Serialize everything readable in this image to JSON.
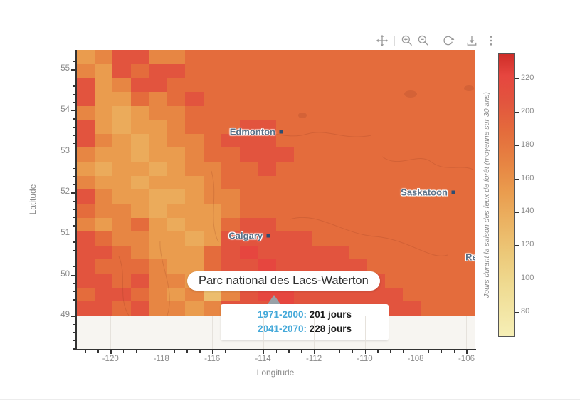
{
  "modebar": {
    "icons": [
      "pan-icon",
      "zoom-in-icon",
      "zoom-out-icon",
      "reset-axes-icon",
      "download-icon",
      "more-options-icon"
    ]
  },
  "chart_data": {
    "type": "heatmap",
    "title": "",
    "xlabel": "Longitude",
    "ylabel": "Latitude",
    "xlim": [
      -121.35,
      -105.65
    ],
    "ylim": [
      48.19,
      55.47
    ],
    "xticks": [
      -120,
      -118,
      -116,
      -114,
      -112,
      -110,
      -108,
      -106
    ],
    "yticks": [
      49,
      50,
      51,
      52,
      53,
      54,
      55
    ],
    "grid": "minor-ticks-on",
    "colorbar": {
      "title": "Jours durant la saison des feux de forêt (moyenne sur 30 ans)",
      "ticks": [
        80,
        100,
        120,
        140,
        160,
        180,
        200,
        220
      ],
      "domain": [
        65,
        235
      ],
      "colorscale": [
        [
          65,
          "#f6efb6"
        ],
        [
          95,
          "#efdb92"
        ],
        [
          115,
          "#ecc878"
        ],
        [
          135,
          "#ebb161"
        ],
        [
          152,
          "#ea9c4e"
        ],
        [
          168,
          "#e78643"
        ],
        [
          188,
          "#e46c3c"
        ],
        [
          207,
          "#e2543e"
        ],
        [
          222,
          "#e6463f"
        ],
        [
          235,
          "#cf2d28"
        ]
      ]
    },
    "values_unit": "jours durant la saison des feux de forêt",
    "matrix": [
      [
        152,
        168,
        207,
        207,
        168,
        168,
        188,
        188,
        188,
        188,
        188,
        188,
        188,
        188,
        188,
        188,
        188,
        188,
        188,
        188,
        188,
        188
      ],
      [
        168,
        152,
        207,
        188,
        207,
        207,
        188,
        188,
        188,
        188,
        188,
        188,
        188,
        188,
        188,
        188,
        188,
        188,
        188,
        188,
        188,
        188
      ],
      [
        207,
        152,
        168,
        207,
        207,
        188,
        188,
        188,
        188,
        188,
        188,
        188,
        188,
        188,
        188,
        188,
        188,
        188,
        188,
        188,
        188,
        188
      ],
      [
        207,
        152,
        152,
        188,
        168,
        188,
        207,
        188,
        188,
        188,
        188,
        188,
        188,
        188,
        188,
        188,
        188,
        188,
        188,
        188,
        188,
        188
      ],
      [
        168,
        152,
        140,
        152,
        168,
        168,
        188,
        188,
        188,
        188,
        188,
        188,
        188,
        188,
        188,
        188,
        188,
        188,
        188,
        188,
        188,
        188
      ],
      [
        207,
        152,
        140,
        152,
        152,
        168,
        188,
        188,
        188,
        207,
        207,
        188,
        188,
        188,
        188,
        188,
        188,
        188,
        188,
        188,
        188,
        188
      ],
      [
        207,
        168,
        152,
        140,
        152,
        168,
        168,
        188,
        207,
        207,
        207,
        188,
        188,
        188,
        188,
        188,
        188,
        188,
        188,
        188,
        188,
        188
      ],
      [
        168,
        152,
        152,
        140,
        152,
        152,
        168,
        188,
        188,
        207,
        207,
        207,
        188,
        188,
        188,
        188,
        188,
        188,
        188,
        188,
        188,
        188
      ],
      [
        152,
        140,
        152,
        152,
        140,
        152,
        168,
        168,
        188,
        188,
        207,
        188,
        188,
        188,
        188,
        188,
        188,
        188,
        188,
        188,
        188,
        188
      ],
      [
        168,
        152,
        152,
        140,
        152,
        152,
        152,
        168,
        188,
        188,
        188,
        188,
        188,
        188,
        188,
        188,
        188,
        188,
        188,
        188,
        188,
        188
      ],
      [
        207,
        168,
        152,
        152,
        140,
        140,
        152,
        168,
        168,
        188,
        188,
        188,
        188,
        188,
        188,
        188,
        188,
        188,
        188,
        188,
        188,
        188
      ],
      [
        188,
        168,
        168,
        152,
        140,
        152,
        152,
        152,
        168,
        188,
        188,
        188,
        188,
        188,
        188,
        188,
        188,
        188,
        188,
        188,
        188,
        188
      ],
      [
        168,
        152,
        168,
        188,
        152,
        140,
        152,
        152,
        188,
        207,
        207,
        188,
        188,
        188,
        188,
        188,
        188,
        188,
        188,
        188,
        188,
        188
      ],
      [
        207,
        188,
        168,
        168,
        152,
        152,
        140,
        152,
        207,
        207,
        207,
        207,
        207,
        188,
        188,
        188,
        188,
        188,
        188,
        188,
        188,
        188
      ],
      [
        207,
        207,
        188,
        168,
        152,
        152,
        152,
        188,
        207,
        222,
        207,
        207,
        207,
        207,
        207,
        188,
        188,
        188,
        188,
        188,
        188,
        188
      ],
      [
        207,
        188,
        188,
        188,
        168,
        152,
        152,
        188,
        207,
        207,
        222,
        207,
        207,
        207,
        207,
        207,
        188,
        188,
        188,
        188,
        188,
        188
      ],
      [
        207,
        207,
        188,
        207,
        168,
        168,
        152,
        168,
        207,
        222,
        207,
        207,
        222,
        207,
        207,
        207,
        207,
        188,
        188,
        188,
        188,
        188
      ],
      [
        188,
        207,
        207,
        188,
        168,
        152,
        168,
        125,
        168,
        207,
        222,
        222,
        207,
        207,
        207,
        207,
        207,
        207,
        188,
        188,
        188,
        188
      ],
      [
        207,
        207,
        188,
        207,
        168,
        168,
        152,
        168,
        207,
        207,
        207,
        222,
        207,
        207,
        207,
        207,
        207,
        207,
        207,
        188,
        188,
        188
      ]
    ],
    "cities": [
      {
        "name": "Edmonton",
        "lon": -113.29,
        "lat": 53.48
      },
      {
        "name": "Saskatoon",
        "lon": -106.52,
        "lat": 52.0
      },
      {
        "name": "Calgary",
        "lon": -113.79,
        "lat": 50.95
      },
      {
        "name": "Regina",
        "lon": -104.6,
        "lat": 50.42
      }
    ],
    "marker": {
      "name": "Parc national des Lacs-Waterton",
      "lon": -113.57,
      "lat": 49.39
    },
    "tooltip": {
      "title": "Parc national des Lacs-Waterton",
      "rows": [
        {
          "label": "1971-2000:",
          "value": "201 jours"
        },
        {
          "label": "2041-2070:",
          "value": "228 jours"
        }
      ]
    }
  }
}
